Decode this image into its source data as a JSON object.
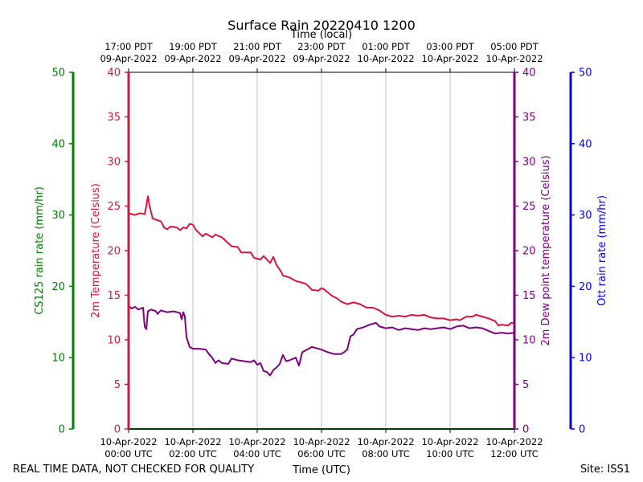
{
  "chart_data": {
    "type": "line",
    "title": "Surface Rain 20220410 1200",
    "top_axis_label": "Time (local)",
    "xlabel": "Time (UTC)",
    "footer_left": "REAL TIME DATA, NOT CHECKED FOR QUALITY",
    "footer_right": "Site: ISS1",
    "x_range_hours": [
      0,
      12
    ],
    "x_ticks_hours": [
      0,
      2,
      4,
      6,
      8,
      10,
      12
    ],
    "x_tick_labels_utc": [
      [
        "10-Apr-2022",
        "00:00 UTC"
      ],
      [
        "10-Apr-2022",
        "02:00 UTC"
      ],
      [
        "10-Apr-2022",
        "04:00 UTC"
      ],
      [
        "10-Apr-2022",
        "06:00 UTC"
      ],
      [
        "10-Apr-2022",
        "08:00 UTC"
      ],
      [
        "10-Apr-2022",
        "10:00 UTC"
      ],
      [
        "10-Apr-2022",
        "12:00 UTC"
      ]
    ],
    "x_tick_labels_local": [
      [
        "17:00 PDT",
        "09-Apr-2022"
      ],
      [
        "19:00 PDT",
        "09-Apr-2022"
      ],
      [
        "21:00 PDT",
        "09-Apr-2022"
      ],
      [
        "23:00 PDT",
        "09-Apr-2022"
      ],
      [
        "01:00 PDT",
        "10-Apr-2022"
      ],
      [
        "03:00 PDT",
        "10-Apr-2022"
      ],
      [
        "05:00 PDT",
        "10-Apr-2022"
      ]
    ],
    "axes": [
      {
        "name": "CS125 rain rate (mm/hr)",
        "color": "#008000",
        "range": [
          0,
          50
        ],
        "ticks": [
          0,
          10,
          20,
          30,
          40,
          50
        ]
      },
      {
        "name": "2m Temperature (Celsius)",
        "color": "#dc143c",
        "range": [
          0,
          40
        ],
        "ticks": [
          0,
          5,
          10,
          15,
          20,
          25,
          30,
          35,
          40
        ]
      },
      {
        "name": "2m Dew point temperature (Celsius)",
        "color": "#800080",
        "range": [
          0,
          40
        ],
        "ticks": [
          0,
          5,
          10,
          15,
          20,
          25,
          30,
          35,
          40
        ]
      },
      {
        "name": "Ott rain rate (mm/hr)",
        "color": "#0000ff",
        "range": [
          0,
          50
        ],
        "ticks": [
          0,
          10,
          20,
          30,
          40,
          50
        ]
      }
    ],
    "series": [
      {
        "name": "2m Temperature",
        "color": "#dc143c",
        "axis": 1,
        "points": [
          [
            0,
            24.2
          ],
          [
            0.2,
            24.0
          ],
          [
            0.35,
            24.2
          ],
          [
            0.5,
            24.1
          ],
          [
            0.55,
            25.0
          ],
          [
            0.6,
            26.1
          ],
          [
            0.65,
            25.0
          ],
          [
            0.75,
            23.6
          ],
          [
            1.0,
            23.3
          ],
          [
            1.05,
            23.0
          ],
          [
            1.1,
            22.6
          ],
          [
            1.2,
            22.4
          ],
          [
            1.3,
            22.7
          ],
          [
            1.5,
            22.6
          ],
          [
            1.6,
            22.3
          ],
          [
            1.7,
            22.6
          ],
          [
            1.8,
            22.5
          ],
          [
            1.9,
            23.0
          ],
          [
            2.0,
            22.9
          ],
          [
            2.1,
            22.3
          ],
          [
            2.3,
            21.6
          ],
          [
            2.4,
            21.9
          ],
          [
            2.5,
            21.7
          ],
          [
            2.6,
            21.5
          ],
          [
            2.7,
            21.8
          ],
          [
            2.9,
            21.5
          ],
          [
            3.2,
            20.5
          ],
          [
            3.4,
            20.4
          ],
          [
            3.5,
            19.8
          ],
          [
            3.8,
            19.8
          ],
          [
            3.9,
            19.2
          ],
          [
            4.1,
            19.0
          ],
          [
            4.2,
            19.4
          ],
          [
            4.3,
            19.0
          ],
          [
            4.4,
            18.6
          ],
          [
            4.5,
            19.3
          ],
          [
            4.6,
            18.4
          ],
          [
            4.75,
            17.6
          ],
          [
            4.8,
            17.2
          ],
          [
            5.0,
            17.0
          ],
          [
            5.2,
            16.6
          ],
          [
            5.4,
            16.4
          ],
          [
            5.5,
            16.3
          ],
          [
            5.6,
            16.0
          ],
          [
            5.7,
            15.6
          ],
          [
            5.9,
            15.5
          ],
          [
            6.0,
            15.8
          ],
          [
            6.1,
            15.6
          ],
          [
            6.3,
            15.0
          ],
          [
            6.5,
            14.6
          ],
          [
            6.6,
            14.3
          ],
          [
            6.8,
            14.0
          ],
          [
            7.0,
            14.2
          ],
          [
            7.2,
            14.0
          ],
          [
            7.4,
            13.6
          ],
          [
            7.6,
            13.6
          ],
          [
            7.8,
            13.3
          ],
          [
            8.0,
            12.8
          ],
          [
            8.2,
            12.6
          ],
          [
            8.4,
            12.7
          ],
          [
            8.6,
            12.6
          ],
          [
            8.8,
            12.8
          ],
          [
            9.0,
            12.7
          ],
          [
            9.2,
            12.8
          ],
          [
            9.4,
            12.5
          ],
          [
            9.6,
            12.4
          ],
          [
            9.8,
            12.4
          ],
          [
            10.0,
            12.2
          ],
          [
            10.2,
            12.3
          ],
          [
            10.3,
            12.2
          ],
          [
            10.5,
            12.6
          ],
          [
            10.7,
            12.6
          ],
          [
            10.8,
            12.8
          ],
          [
            11.0,
            12.6
          ],
          [
            11.2,
            12.4
          ],
          [
            11.4,
            12.1
          ],
          [
            11.5,
            11.6
          ],
          [
            11.6,
            11.7
          ],
          [
            11.8,
            11.6
          ],
          [
            11.9,
            11.9
          ],
          [
            12.0,
            11.9
          ]
        ]
      },
      {
        "name": "2m Dew point temperature",
        "color": "#800080",
        "axis": 2,
        "points": [
          [
            0,
            13.8
          ],
          [
            0.1,
            13.5
          ],
          [
            0.2,
            13.7
          ],
          [
            0.3,
            13.4
          ],
          [
            0.45,
            13.6
          ],
          [
            0.5,
            11.5
          ],
          [
            0.55,
            11.2
          ],
          [
            0.6,
            13.2
          ],
          [
            0.7,
            13.4
          ],
          [
            0.85,
            13.2
          ],
          [
            0.9,
            12.9
          ],
          [
            1.0,
            13.3
          ],
          [
            1.2,
            13.1
          ],
          [
            1.4,
            13.2
          ],
          [
            1.6,
            13.0
          ],
          [
            1.65,
            12.3
          ],
          [
            1.7,
            13.1
          ],
          [
            1.75,
            12.6
          ],
          [
            1.8,
            10.3
          ],
          [
            1.9,
            9.2
          ],
          [
            2.0,
            9.0
          ],
          [
            2.2,
            9.0
          ],
          [
            2.4,
            8.9
          ],
          [
            2.5,
            8.4
          ],
          [
            2.6,
            8.0
          ],
          [
            2.7,
            7.4
          ],
          [
            2.8,
            7.7
          ],
          [
            2.9,
            7.4
          ],
          [
            3.1,
            7.3
          ],
          [
            3.2,
            7.9
          ],
          [
            3.4,
            7.7
          ],
          [
            3.6,
            7.6
          ],
          [
            3.8,
            7.5
          ],
          [
            3.9,
            7.7
          ],
          [
            4.0,
            7.2
          ],
          [
            4.1,
            7.4
          ],
          [
            4.2,
            6.5
          ],
          [
            4.3,
            6.4
          ],
          [
            4.4,
            6.0
          ],
          [
            4.5,
            6.6
          ],
          [
            4.6,
            6.9
          ],
          [
            4.7,
            7.3
          ],
          [
            4.8,
            8.3
          ],
          [
            4.9,
            7.6
          ],
          [
            5.0,
            7.7
          ],
          [
            5.2,
            8.0
          ],
          [
            5.3,
            7.1
          ],
          [
            5.4,
            8.6
          ],
          [
            5.5,
            8.8
          ],
          [
            5.6,
            9.0
          ],
          [
            5.7,
            9.2
          ],
          [
            5.8,
            9.1
          ],
          [
            6.0,
            8.9
          ],
          [
            6.2,
            8.6
          ],
          [
            6.4,
            8.4
          ],
          [
            6.6,
            8.4
          ],
          [
            6.7,
            8.6
          ],
          [
            6.8,
            8.9
          ],
          [
            6.9,
            10.4
          ],
          [
            7.0,
            10.6
          ],
          [
            7.1,
            11.2
          ],
          [
            7.3,
            11.4
          ],
          [
            7.5,
            11.7
          ],
          [
            7.7,
            11.9
          ],
          [
            7.8,
            11.5
          ],
          [
            8.0,
            11.3
          ],
          [
            8.2,
            11.4
          ],
          [
            8.4,
            11.1
          ],
          [
            8.6,
            11.3
          ],
          [
            8.8,
            11.2
          ],
          [
            9.0,
            11.1
          ],
          [
            9.2,
            11.3
          ],
          [
            9.4,
            11.2
          ],
          [
            9.6,
            11.3
          ],
          [
            9.8,
            11.4
          ],
          [
            10.0,
            11.2
          ],
          [
            10.2,
            11.5
          ],
          [
            10.4,
            11.6
          ],
          [
            10.6,
            11.3
          ],
          [
            10.8,
            11.4
          ],
          [
            11.0,
            11.3
          ],
          [
            11.2,
            11.0
          ],
          [
            11.4,
            10.7
          ],
          [
            11.6,
            10.8
          ],
          [
            11.8,
            10.7
          ],
          [
            12.0,
            10.8
          ]
        ]
      },
      {
        "name": "CS125 rain rate",
        "color": "#008000",
        "axis": 0,
        "points": [
          [
            0,
            0
          ],
          [
            12,
            0
          ]
        ]
      }
    ]
  }
}
